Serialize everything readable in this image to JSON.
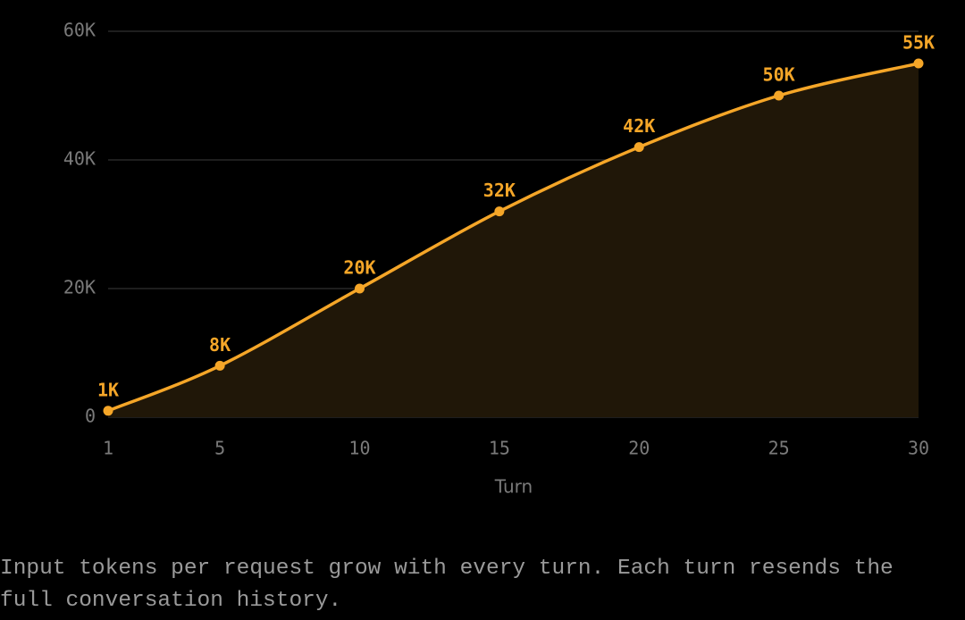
{
  "chart_data": {
    "type": "line",
    "x": [
      1,
      5,
      10,
      15,
      20,
      25,
      30
    ],
    "series": [
      {
        "color": "#f5a628",
        "values": [
          1000,
          8000,
          20000,
          32000,
          42000,
          50000,
          55000
        ],
        "value_labels": [
          "1K",
          "8K",
          "20K",
          "32K",
          "42K",
          "50K",
          "55K"
        ]
      }
    ],
    "area_color": "#201708",
    "xlim": [
      1,
      30
    ],
    "xticks": [
      1,
      5,
      10,
      15,
      20,
      25,
      30
    ],
    "ylim": [
      0,
      60000
    ],
    "yticks": [
      0,
      {
        "value": 20000,
        "label": "20K"
      },
      {
        "value": 40000,
        "label": "40K"
      },
      {
        "value": 60000,
        "label": "60K"
      }
    ],
    "grid": true,
    "xlabel": "Turn",
    "caption": "Input tokens per request grow with every turn. Each turn resends the full conversation history."
  }
}
